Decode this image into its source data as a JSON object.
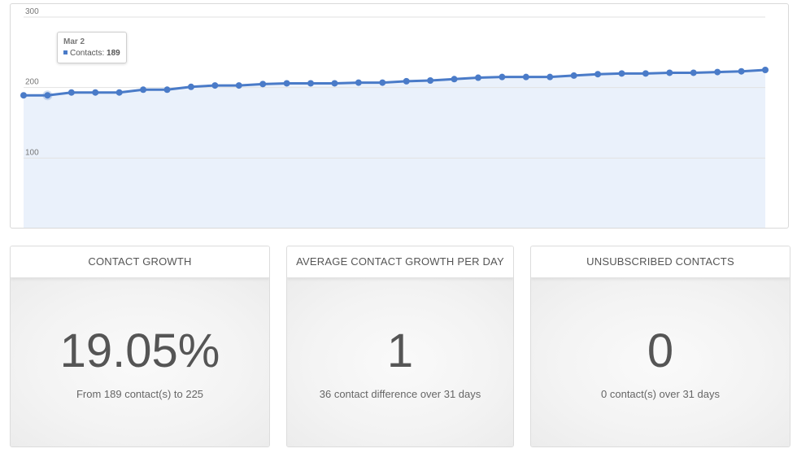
{
  "chart_data": {
    "type": "area",
    "title": "",
    "xlabel": "",
    "ylabel": "",
    "ylim": [
      0,
      300
    ],
    "y_ticks": [
      "300",
      "200",
      "100"
    ],
    "y_tick_values": [
      300,
      200,
      100
    ],
    "grid": true,
    "series": [
      {
        "name": "Contacts",
        "color": "#4a7bc8",
        "fill": "#eaf1fb",
        "values": [
          189,
          189,
          193,
          193,
          193,
          197,
          197,
          201,
          203,
          203,
          205,
          206,
          206,
          206,
          207,
          207,
          209,
          210,
          212,
          214,
          215,
          215,
          215,
          217,
          219,
          220,
          220,
          221,
          221,
          222,
          223,
          225
        ]
      }
    ]
  },
  "tooltip": {
    "date": "Mar 2",
    "series_label": "Contacts:",
    "value": "189"
  },
  "cards": [
    {
      "title": "CONTACT GROWTH",
      "value": "19.05%",
      "subtitle": "From 189 contact(s) to 225"
    },
    {
      "title": "AVERAGE CONTACT GROWTH PER DAY",
      "value": "1",
      "subtitle": "36 contact difference over 31 days"
    },
    {
      "title": "UNSUBSCRIBED CONTACTS",
      "value": "0",
      "subtitle": "0 contact(s) over 31 days"
    }
  ]
}
